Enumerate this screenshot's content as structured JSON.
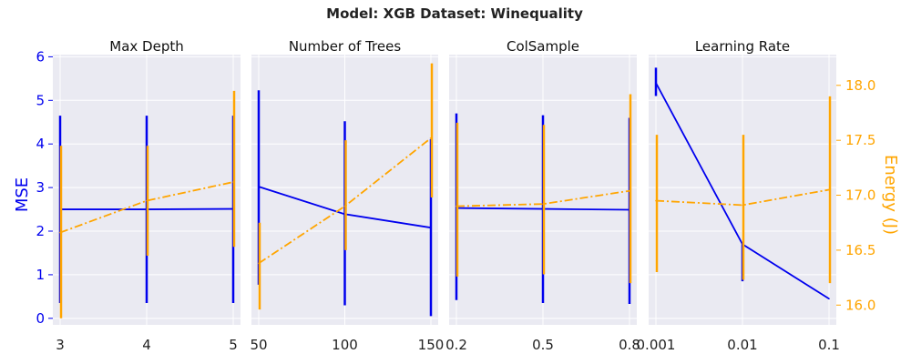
{
  "title": "Model: XGB Dataset: Winequality",
  "colors": {
    "mse": "#0000ee",
    "energy": "#ffa500",
    "panel_bg": "#eaeaf2",
    "grid": "#ffffff"
  },
  "axes": {
    "left_label": "MSE",
    "right_label": "Energy (J)",
    "left_ylim": [
      -0.15,
      6.05
    ],
    "left_ticks": [
      0,
      1,
      2,
      3,
      4,
      5,
      6
    ],
    "right_ylim": [
      15.82,
      18.28
    ],
    "right_ticks": [
      "16.0",
      "16.5",
      "17.0",
      "17.5",
      "18.0"
    ]
  },
  "chart_data": [
    {
      "type": "line",
      "title": "Max Depth",
      "x": [
        "3",
        "4",
        "5"
      ],
      "series": [
        {
          "name": "MSE",
          "values": [
            2.5,
            2.5,
            2.51
          ],
          "err_low": [
            0.35,
            0.35,
            0.35
          ],
          "err_high": [
            4.65,
            4.65,
            4.65
          ]
        },
        {
          "name": "Energy (J)",
          "values": [
            16.66,
            16.95,
            17.12
          ],
          "err_low": [
            15.88,
            16.45,
            16.53
          ],
          "err_high": [
            17.45,
            17.45,
            17.95
          ]
        }
      ]
    },
    {
      "type": "line",
      "title": "Number of Trees",
      "x": [
        "50",
        "100",
        "150"
      ],
      "series": [
        {
          "name": "MSE",
          "values": [
            3.02,
            2.39,
            2.08
          ],
          "err_low": [
            0.77,
            0.3,
            0.05
          ],
          "err_high": [
            5.23,
            4.52,
            4.11
          ]
        },
        {
          "name": "Energy (J)",
          "values": [
            16.38,
            16.9,
            17.52
          ],
          "err_low": [
            15.96,
            16.5,
            16.98
          ],
          "err_high": [
            16.75,
            17.5,
            18.2
          ]
        }
      ]
    },
    {
      "type": "line",
      "title": "ColSample",
      "x": [
        "0.2",
        "0.5",
        "0.8"
      ],
      "series": [
        {
          "name": "MSE",
          "values": [
            2.53,
            2.51,
            2.49
          ],
          "err_low": [
            0.42,
            0.35,
            0.33
          ],
          "err_high": [
            4.7,
            4.66,
            4.6
          ]
        },
        {
          "name": "Energy (J)",
          "values": [
            16.9,
            16.92,
            17.04
          ],
          "err_low": [
            16.26,
            16.28,
            16.2
          ],
          "err_high": [
            17.66,
            17.64,
            17.92
          ]
        }
      ]
    },
    {
      "type": "line",
      "title": "Learning Rate",
      "x": [
        "0.001",
        "0.01",
        "0.1"
      ],
      "series": [
        {
          "name": "MSE",
          "values": [
            5.4,
            1.7,
            0.45
          ],
          "err_low": [
            5.1,
            0.85,
            0.45
          ],
          "err_high": [
            5.75,
            1.7,
            0.45
          ]
        },
        {
          "name": "Energy (J)",
          "values": [
            16.95,
            16.91,
            17.05
          ],
          "err_low": [
            16.3,
            16.23,
            16.2
          ],
          "err_high": [
            17.55,
            17.55,
            17.9
          ]
        }
      ]
    }
  ]
}
